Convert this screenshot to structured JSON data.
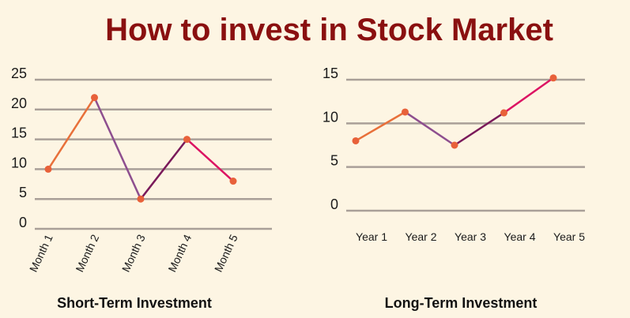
{
  "title": "How to invest in Stock Market",
  "colors": {
    "background": "#fdf5e3",
    "title": "#8a1010",
    "grid": "#a99f98",
    "marker": "#e8613a",
    "segments": [
      "#e8703a",
      "#8e4f8f",
      "#7a1a5a",
      "#dc1463"
    ]
  },
  "chart_data": [
    {
      "type": "line",
      "title": "",
      "xlabel": "Short-Term Investment",
      "ylabel": "",
      "categories": [
        "Month 1",
        "Month 2",
        "Month 3",
        "Month 4",
        "Month 5"
      ],
      "values": [
        10,
        22,
        5,
        15,
        8
      ],
      "yticks": [
        0,
        5,
        10,
        15,
        20,
        25
      ],
      "ylim": [
        0,
        25
      ],
      "grid": true,
      "legend": "none"
    },
    {
      "type": "line",
      "title": "",
      "xlabel": "Long-Term Investment",
      "ylabel": "",
      "categories": [
        "Year 1",
        "Year 2",
        "Year 3",
        "Year 4",
        "Year 5"
      ],
      "values": [
        8,
        11.3,
        7.5,
        11.2,
        15.2
      ],
      "yticks": [
        0,
        5,
        10,
        15
      ],
      "ylim": [
        0,
        15
      ],
      "grid": true,
      "legend": "none"
    }
  ]
}
